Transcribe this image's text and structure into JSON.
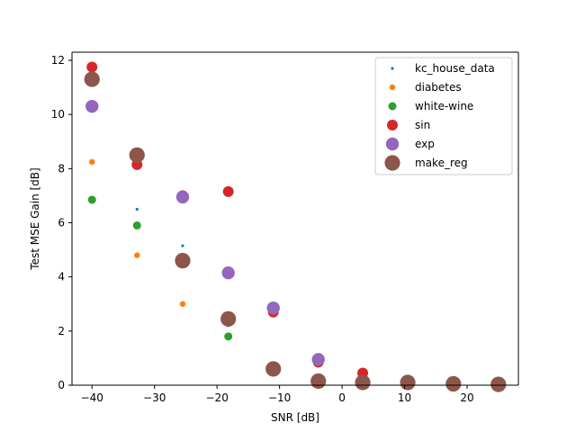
{
  "chart_data": {
    "type": "scatter",
    "title": "",
    "xlabel": "SNR [dB]",
    "ylabel": "Test MSE Gain [dB]",
    "xlim": [
      -43.2,
      28.2
    ],
    "ylim": [
      0,
      12.3
    ],
    "xticks": [
      -40,
      -30,
      -20,
      -10,
      0,
      10,
      20
    ],
    "yticks": [
      0,
      2,
      4,
      6,
      8,
      10,
      12
    ],
    "grid": false,
    "legend_position": "top-right",
    "series": [
      {
        "name": "kc_house_data",
        "color": "#1f77b4",
        "marker_size": "small",
        "x": [
          -40,
          -32.8,
          -25.5,
          -18.2
        ],
        "y": [
          8.2,
          6.5,
          5.15,
          2.2
        ]
      },
      {
        "name": "diabetes",
        "color": "#ff7f0e",
        "marker_size": "small-medium",
        "x": [
          -40,
          -32.8,
          -25.5
        ],
        "y": [
          8.25,
          4.8,
          3.0
        ]
      },
      {
        "name": "white-wine",
        "color": "#2ca02c",
        "marker_size": "medium",
        "x": [
          -40,
          -32.8,
          -18.2
        ],
        "y": [
          6.85,
          5.9,
          1.8
        ]
      },
      {
        "name": "sin",
        "color": "#d62728",
        "marker_size": "medium-large",
        "x": [
          -40,
          -32.8,
          -25.5,
          -18.2,
          -11.0,
          -3.8,
          3.3
        ],
        "y": [
          11.75,
          8.15,
          7.0,
          7.15,
          2.7,
          0.85,
          0.45
        ]
      },
      {
        "name": "exp",
        "color": "#9467bd",
        "marker_size": "large",
        "x": [
          -40,
          -25.5,
          -18.2,
          -11.0,
          -3.8
        ],
        "y": [
          10.3,
          6.95,
          4.15,
          2.85,
          0.95
        ]
      },
      {
        "name": "make_reg",
        "color": "#8c564b",
        "marker_size": "extra-large",
        "x": [
          -40,
          -32.8,
          -25.5,
          -18.2,
          -11.0,
          -3.8,
          3.3,
          10.5,
          17.8,
          25.0
        ],
        "y": [
          11.3,
          8.5,
          4.6,
          2.45,
          0.6,
          0.15,
          0.1,
          0.1,
          0.05,
          0.03
        ]
      }
    ]
  }
}
